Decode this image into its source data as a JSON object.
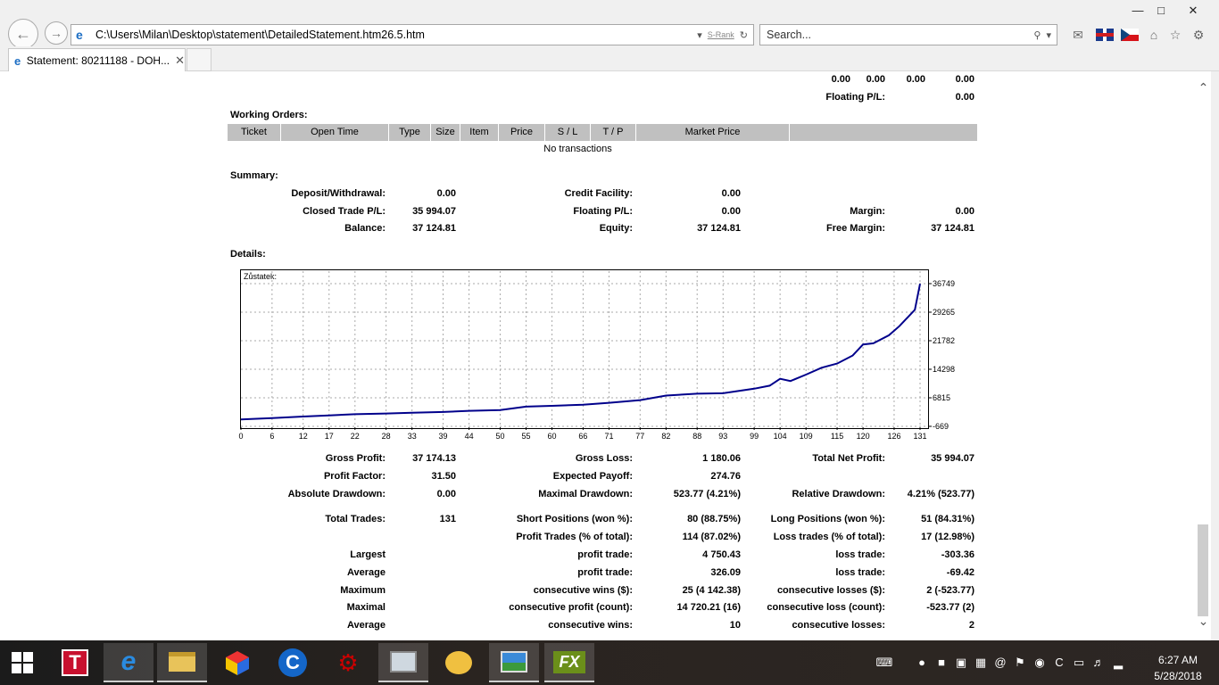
{
  "browser": {
    "address": "C:\\Users\\Milan\\Desktop\\statement\\DetailedStatement.htm26.5.htm",
    "srank": "S-Rank",
    "search_placeholder": "Search...",
    "tab_title": "Statement: 80211188 - DOH...",
    "icons": [
      "back-arrow-icon",
      "forward-arrow-icon",
      "ie-icon",
      "dropdown-icon",
      "refresh-icon",
      "search-icon",
      "mail-icon",
      "uk-flag-icon",
      "cz-flag-icon",
      "home-icon",
      "star-icon",
      "gear-icon"
    ]
  },
  "top_row": {
    "values": [
      "0.00",
      "0.00",
      "0.00",
      "0.00"
    ],
    "floating_label": "Floating P/L:",
    "floating_value": "0.00"
  },
  "working_orders": {
    "title": "Working Orders:",
    "columns": [
      "Ticket",
      "Open Time",
      "Type",
      "Size",
      "Item",
      "Price",
      "S / L",
      "T / P",
      "Market Price"
    ],
    "empty_text": "No transactions"
  },
  "summary": {
    "title": "Summary:",
    "deposit_label": "Deposit/Withdrawal:",
    "deposit": "0.00",
    "credit_label": "Credit Facility:",
    "credit": "0.00",
    "closed_label": "Closed Trade P/L:",
    "closed": "35 994.07",
    "floating_label": "Floating P/L:",
    "floating": "0.00",
    "margin_label": "Margin:",
    "margin": "0.00",
    "balance_label": "Balance:",
    "balance": "37 124.81",
    "equity_label": "Equity:",
    "equity": "37 124.81",
    "free_margin_label": "Free Margin:",
    "free_margin": "37 124.81"
  },
  "details": {
    "title": "Details:",
    "gross_profit_label": "Gross Profit:",
    "gross_profit": "37 174.13",
    "gross_loss_label": "Gross Loss:",
    "gross_loss": "1 180.06",
    "total_net_label": "Total Net Profit:",
    "total_net": "35 994.07",
    "profit_factor_label": "Profit Factor:",
    "profit_factor": "31.50",
    "expected_payoff_label": "Expected Payoff:",
    "expected_payoff": "274.76",
    "abs_dd_label": "Absolute Drawdown:",
    "abs_dd": "0.00",
    "max_dd_label": "Maximal Drawdown:",
    "max_dd": "523.77 (4.21%)",
    "rel_dd_label": "Relative Drawdown:",
    "rel_dd": "4.21% (523.77)",
    "total_trades_label": "Total Trades:",
    "total_trades": "131",
    "short_label": "Short Positions (won %):",
    "short": "80 (88.75%)",
    "long_label": "Long Positions (won %):",
    "long": "51 (84.31%)",
    "profit_trades_label": "Profit Trades (% of total):",
    "profit_trades": "114 (87.02%)",
    "loss_trades_label": "Loss trades (% of total):",
    "loss_trades": "17 (12.98%)",
    "largest_label": "Largest",
    "largest_profit_label": "profit trade:",
    "largest_profit": "4 750.43",
    "largest_loss_label": "loss trade:",
    "largest_loss": "-303.36",
    "average_label": "Average",
    "average_profit_label": "profit trade:",
    "average_profit": "326.09",
    "average_loss_label": "loss trade:",
    "average_loss": "-69.42",
    "maximum_label": "Maximum",
    "max_cons_wins_label": "consecutive wins ($):",
    "max_cons_wins": "25 (4 142.38)",
    "max_cons_losses_label": "consecutive losses ($):",
    "max_cons_losses": "2 (-523.77)",
    "maximal_label": "Maximal",
    "maximal_profit_label": "consecutive profit (count):",
    "maximal_profit": "14 720.21 (16)",
    "maximal_loss_label": "consecutive loss (count):",
    "maximal_loss": "-523.77 (2)",
    "average2_label": "Average",
    "avg_cons_wins_label": "consecutive wins:",
    "avg_cons_wins": "10",
    "avg_cons_losses_label": "consecutive losses:",
    "avg_cons_losses": "2"
  },
  "chart_data": {
    "type": "line",
    "title": "Zůstatek:",
    "xlabel": "",
    "ylabel": "",
    "xlim": [
      0,
      135
    ],
    "ylim": [
      -669,
      38300
    ],
    "x_ticks": [
      "0",
      "6",
      "12",
      "17",
      "22",
      "28",
      "33",
      "39",
      "44",
      "50",
      "55",
      "60",
      "66",
      "71",
      "77",
      "82",
      "88",
      "93",
      "99",
      "104",
      "109",
      "115",
      "120",
      "126",
      "131"
    ],
    "y_ticks": [
      "36749",
      "29265",
      "21782",
      "14298",
      "6815",
      "-669"
    ],
    "line_color": "#00008b",
    "grid": true,
    "series": [
      {
        "x": [
          0,
          6,
          12,
          17,
          22,
          28,
          33,
          39,
          44,
          50,
          55,
          60,
          66,
          71,
          77,
          82,
          88,
          93,
          99,
          102,
          104,
          106,
          109,
          112,
          115,
          118,
          120,
          122,
          125,
          127,
          130,
          131
        ],
        "y": [
          1131,
          1500,
          1900,
          2200,
          2500,
          2700,
          2900,
          3100,
          3400,
          3600,
          4500,
          4700,
          5000,
          5500,
          6200,
          7400,
          7900,
          8000,
          9200,
          10000,
          11800,
          11200,
          12900,
          14700,
          15800,
          17900,
          20800,
          21100,
          23200,
          25600,
          29900,
          36700
        ]
      }
    ]
  },
  "taskbar": {
    "apps": [
      "t-app-icon",
      "ie-icon",
      "file-explorer-icon",
      "cube-app-icon",
      "ccleaner-icon",
      "gear-app-icon",
      "monitor-app-icon",
      "paint-icon",
      "photos-icon",
      "fx-app-icon"
    ],
    "fx_label": "FX",
    "t_label": "T",
    "clock_time": "6:27 AM",
    "clock_date": "5/28/2018"
  }
}
